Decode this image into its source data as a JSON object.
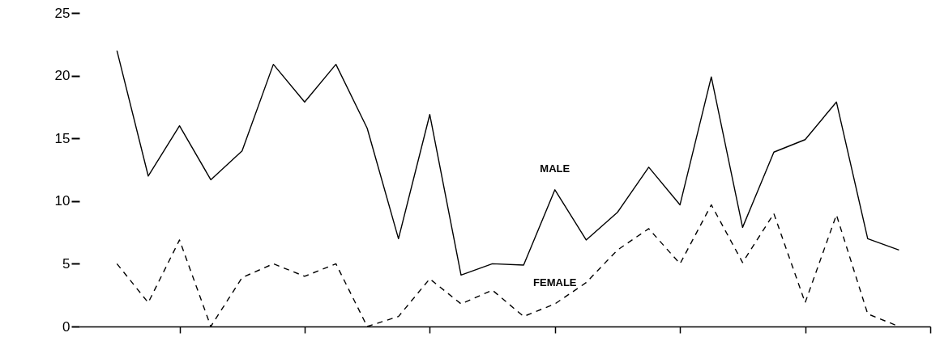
{
  "chart_data": {
    "type": "line",
    "categories": [
      null,
      null,
      null,
      null,
      null,
      null,
      null,
      null,
      null,
      null,
      null,
      null,
      null,
      null,
      null,
      null,
      null,
      null,
      null,
      null,
      null,
      null,
      null,
      null,
      null,
      null
    ],
    "series": [
      {
        "name": "MALE",
        "color": "#000000",
        "line_style": "solid",
        "values": [
          22,
          12,
          16,
          11.7,
          14,
          20.9,
          17.9,
          20.9,
          15.8,
          7,
          16.9,
          4.1,
          5,
          4.9,
          10.9,
          6.9,
          9.1,
          12.7,
          9.7,
          19.9,
          7.9,
          13.9,
          14.9,
          17.9,
          7,
          6.1
        ]
      },
      {
        "name": "FEMALE",
        "color": "#000000",
        "line_style": "dashed",
        "values": [
          5,
          1.9,
          6.9,
          0,
          3.9,
          5,
          4,
          5,
          0,
          0.8,
          3.8,
          1.8,
          2.9,
          0.8,
          1.8,
          3.5,
          6.1,
          7.8,
          5,
          9.7,
          5.1,
          9,
          1.9,
          8.9,
          1,
          0
        ]
      }
    ],
    "ylim": [
      0,
      25
    ],
    "yticks": [
      0,
      5,
      10,
      15,
      20,
      25
    ],
    "tick_labels": "y",
    "grid": false,
    "marker": "none"
  }
}
